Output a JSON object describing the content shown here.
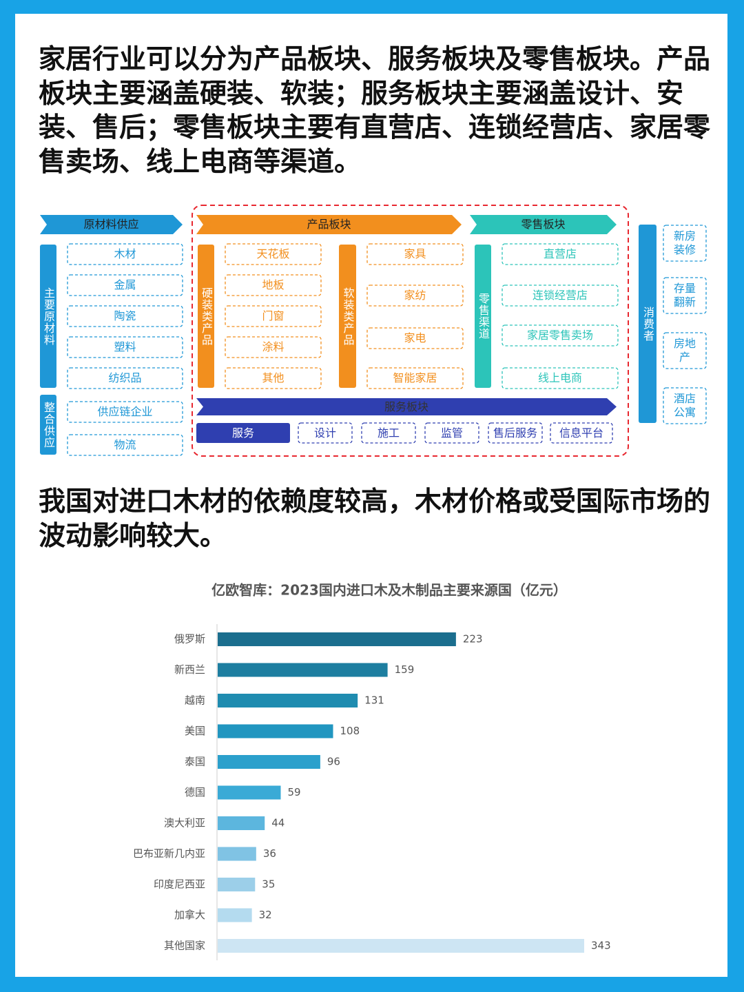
{
  "intro": "家居行业可以分为产品板块、服务板块及零售板块。产品板块主要涵盖硬装、软装；服务板块主要涵盖设计、安装、售后；零售板块主要有直营店、连锁经营店、家居零售卖场、线上电商等渠道。",
  "diagram": {
    "supply": {
      "title": "原材料供应",
      "main_label": "主要原材料",
      "main_items": [
        "木材",
        "金属",
        "陶瓷",
        "塑料",
        "纺织品"
      ],
      "integrated_label": "整合供应",
      "integrated_items": [
        "供应链企业",
        "物流"
      ]
    },
    "product": {
      "title": "产品板块",
      "hard_label": "硬装类产品",
      "hard_items": [
        "天花板",
        "地板",
        "门窗",
        "涂料",
        "其他"
      ],
      "soft_label": "软装类产品",
      "soft_items": [
        "家具",
        "家纺",
        "家电",
        "智能家居"
      ]
    },
    "retail": {
      "title": "零售板块",
      "channel_label": "零售渠道",
      "items": [
        "直营店",
        "连锁经营店",
        "家居零售卖场",
        "线上电商"
      ]
    },
    "service": {
      "title": "服务板块",
      "items": [
        "服务",
        "设计",
        "施工",
        "监管",
        "售后服务",
        "信息平台"
      ]
    },
    "consumer": {
      "label": "消费者",
      "items": [
        "新房装修",
        "存量翻新",
        "房地产",
        "酒店公寓"
      ]
    }
  },
  "note": "我国对进口木材的依赖度较高，木材价格或受国际市场的波动影响较大。",
  "chart_data": {
    "type": "bar",
    "orientation": "horizontal",
    "title": "亿欧智库：2023国内进口木及木制品主要来源国（亿元）",
    "categories": [
      "俄罗斯",
      "新西兰",
      "越南",
      "美国",
      "泰国",
      "德国",
      "澳大利亚",
      "巴布亚新几内亚",
      "印度尼西亚",
      "加拿大",
      "其他国家"
    ],
    "values": [
      223,
      159,
      131,
      108,
      96,
      59,
      44,
      36,
      35,
      32,
      343
    ],
    "colors": [
      "#1b6e8e",
      "#1d7ea0",
      "#1f8cb0",
      "#2196c0",
      "#2ba0cc",
      "#3aaad6",
      "#5cb6de",
      "#80c3e4",
      "#9ccfe9",
      "#b4dbef",
      "#cde5f3"
    ]
  }
}
